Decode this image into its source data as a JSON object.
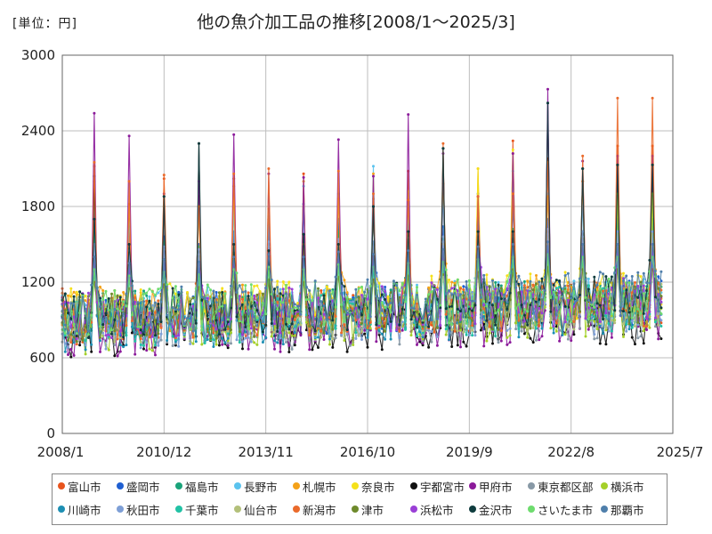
{
  "header": {
    "unit": "[単位：円]",
    "title": "他の魚介加工品の推移[2008/1～2025/3]"
  },
  "chart_data": {
    "type": "line",
    "title": "他の魚介加工品の推移[2008/1～2025/3]",
    "unit": "[単位：円]",
    "period": {
      "start": "2008-01",
      "end": "2025-03"
    },
    "x_ticks": [
      "2008/1",
      "2010/12",
      "2013/11",
      "2016/10",
      "2019/9",
      "2022/8",
      "2025/7"
    ],
    "y_ticks": [
      "0",
      "600",
      "1200",
      "1800",
      "2400",
      "3000"
    ],
    "ylim": [
      0,
      3000
    ],
    "grid": true,
    "legend_position": "bottom",
    "series": [
      {
        "name": "富山市",
        "color": "#e8541d",
        "peaks": [
          2120,
          1640,
          2020,
          1880,
          2020,
          1700,
          2060,
          1660,
          1860,
          2080,
          1640,
          1900,
          2320,
          2180,
          2000,
          2280
        ]
      },
      {
        "name": "盛岡市",
        "color": "#1f5fd1",
        "peaks": [
          1800,
          1420,
          1560,
          1500,
          1600,
          1650,
          1820,
          1700,
          1780,
          1720,
          1640,
          1750,
          1800,
          1700,
          1560,
          1400
        ]
      },
      {
        "name": "福島市",
        "color": "#1aa37a",
        "peaks": [
          1600,
          1440,
          1520,
          1480,
          1500,
          1520,
          1560,
          1600,
          1500,
          1580,
          1540,
          1600,
          1620,
          1580,
          1600,
          1700
        ]
      },
      {
        "name": "長野市",
        "color": "#5bc3ee",
        "peaks": [
          1900,
          1700,
          1800,
          1760,
          1800,
          1720,
          1960,
          1900,
          2120,
          1800,
          1900,
          1900,
          2080,
          1900,
          1850,
          1900
        ]
      },
      {
        "name": "札幌市",
        "color": "#f4a118",
        "peaks": [
          2000,
          1820,
          1800,
          1780,
          1960,
          1780,
          2000,
          1860,
          2060,
          1920,
          1980,
          2100,
          2220,
          1880,
          2000,
          1920
        ]
      },
      {
        "name": "奈良市",
        "color": "#f5e11b",
        "peaks": [
          1400,
          1300,
          1360,
          1320,
          1380,
          1400,
          1420,
          1500,
          1450,
          1460,
          1500,
          2100,
          2250,
          1500,
          1550,
          1900
        ]
      },
      {
        "name": "宇都宮市",
        "color": "#111111",
        "peaks": [
          2040,
          1500,
          1880,
          2300,
          1500,
          1450,
          1580,
          1500,
          1800,
          1600,
          2260,
          1600,
          1600,
          2620,
          2100,
          2130
        ]
      },
      {
        "name": "甲府市",
        "color": "#8b1a9a",
        "peaks": [
          2540,
          2360,
          1900,
          2000,
          2370,
          2060,
          2030,
          2330,
          2040,
          2530,
          2220,
          1880,
          2220,
          2730,
          2160,
          2200
        ]
      },
      {
        "name": "東京都区部",
        "color": "#8899a6",
        "peaks": [
          1500,
          1400,
          1460,
          1420,
          1450,
          1480,
          1500,
          1520,
          1480,
          1500,
          1520,
          1540,
          1560,
          1580,
          1560,
          1600
        ]
      },
      {
        "name": "横浜市",
        "color": "#a5d02a",
        "peaks": [
          1300,
          1250,
          1280,
          1260,
          1300,
          1320,
          1300,
          1340,
          1320,
          1350,
          1360,
          1380,
          1400,
          1420,
          1400,
          1900
        ]
      },
      {
        "name": "川崎市",
        "color": "#1d8fb3",
        "peaks": [
          1400,
          1350,
          1380,
          1360,
          1400,
          1420,
          1400,
          1440,
          1420,
          1450,
          1460,
          1480,
          1500,
          1520,
          1500,
          1500
        ]
      },
      {
        "name": "秋田市",
        "color": "#7e9fd6",
        "peaks": [
          1500,
          1450,
          1480,
          1460,
          1500,
          1520,
          1500,
          1540,
          1520,
          1550,
          1560,
          1580,
          1600,
          1620,
          1600,
          1600
        ]
      },
      {
        "name": "千葉市",
        "color": "#22c2a5",
        "peaks": [
          1300,
          1250,
          1280,
          1260,
          1300,
          1320,
          1300,
          1340,
          1320,
          1350,
          1360,
          1380,
          1400,
          1420,
          1400,
          1400
        ]
      },
      {
        "name": "仙台市",
        "color": "#b3c07a",
        "peaks": [
          1200,
          1150,
          1180,
          1160,
          1200,
          1220,
          1200,
          1240,
          1220,
          1250,
          1260,
          1280,
          1300,
          1320,
          1300,
          1300
        ]
      },
      {
        "name": "新潟市",
        "color": "#ea6a2b",
        "peaks": [
          2150,
          2000,
          2050,
          1800,
          2060,
          2100,
          1500,
          2080,
          1900,
          1850,
          2300,
          1880,
          1900,
          2150,
          2200,
          2660
        ]
      },
      {
        "name": "津市",
        "color": "#6e8a2c",
        "peaks": [
          1200,
          1150,
          1180,
          1160,
          1200,
          1220,
          1200,
          1240,
          1220,
          1250,
          1260,
          1280,
          1300,
          1320,
          1300,
          1300
        ]
      },
      {
        "name": "浜松市",
        "color": "#9a3fd6",
        "peaks": [
          1400,
          1350,
          1380,
          1360,
          1400,
          1420,
          1400,
          1440,
          1420,
          1450,
          1460,
          1480,
          1500,
          1520,
          1500,
          1500
        ]
      },
      {
        "name": "金沢市",
        "color": "#0f3c3e",
        "peaks": [
          1700,
          1500,
          1880,
          2300,
          1500,
          1450,
          1580,
          1500,
          1800,
          1600,
          2260,
          1600,
          1600,
          2620,
          2100,
          2130
        ]
      },
      {
        "name": "さいたま市",
        "color": "#6edc6e",
        "peaks": [
          1300,
          1250,
          1280,
          1260,
          1300,
          1320,
          1300,
          1340,
          1320,
          1350,
          1360,
          1380,
          1400,
          1420,
          1400,
          1400
        ]
      },
      {
        "name": "那覇市",
        "color": "#4f7fab",
        "peaks": [
          1400,
          1350,
          1380,
          1360,
          1400,
          1420,
          1400,
          1440,
          1420,
          1450,
          1460,
          1480,
          1500,
          1520,
          1500,
          1500
        ]
      }
    ],
    "baseline": {
      "typical_low": 650,
      "typical_high": 1100
    }
  }
}
